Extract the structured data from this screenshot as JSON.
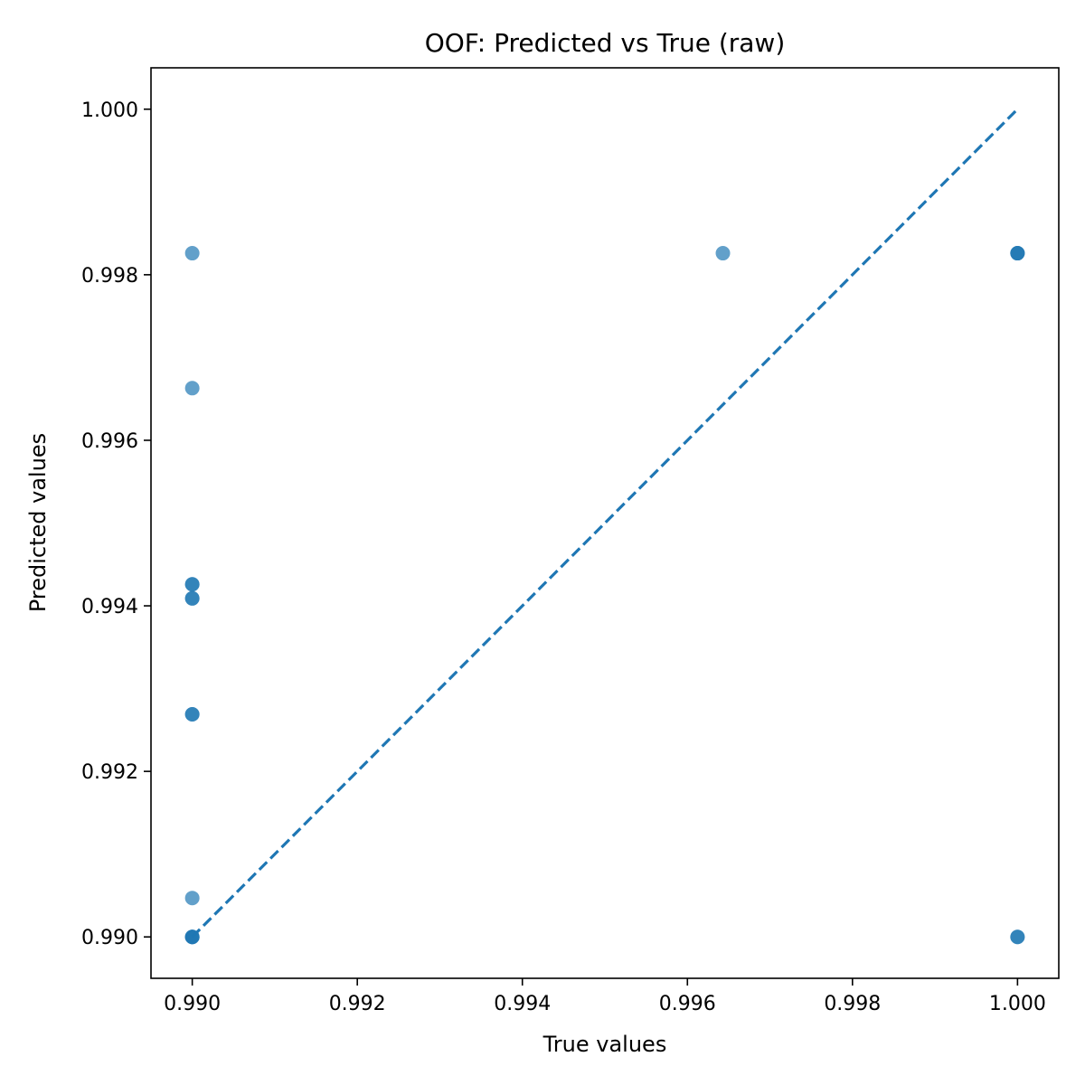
{
  "chart_data": {
    "type": "scatter",
    "title": "OOF: Predicted vs True (raw)",
    "xlabel": "True values",
    "ylabel": "Predicted values",
    "xlim": [
      0.9895,
      1.0005
    ],
    "ylim": [
      0.9895,
      1.0005
    ],
    "xticks": [
      0.99,
      0.992,
      0.994,
      0.996,
      0.998,
      1.0
    ],
    "yticks": [
      0.99,
      0.992,
      0.994,
      0.996,
      0.998,
      1.0
    ],
    "xtick_labels": [
      "0.990",
      "0.992",
      "0.994",
      "0.996",
      "0.998",
      "1.000"
    ],
    "ytick_labels": [
      "0.990",
      "0.992",
      "0.994",
      "0.996",
      "0.998",
      "1.000"
    ],
    "grid": false,
    "colors": {
      "points": "#1f77b4",
      "reference_line": "#1f77b4",
      "axes": "#000000"
    },
    "series": [
      {
        "points": [
          {
            "x": 0.99,
            "y": 0.99826
          },
          {
            "x": 0.99,
            "y": 0.99663
          },
          {
            "x": 0.99,
            "y": 0.99426
          },
          {
            "x": 0.99,
            "y": 0.99426
          },
          {
            "x": 0.99,
            "y": 0.99409
          },
          {
            "x": 0.99,
            "y": 0.99409
          },
          {
            "x": 0.99,
            "y": 0.99269
          },
          {
            "x": 0.99,
            "y": 0.99269
          },
          {
            "x": 0.99,
            "y": 0.99047
          },
          {
            "x": 0.99,
            "y": 0.99
          },
          {
            "x": 0.99,
            "y": 0.99
          },
          {
            "x": 0.99,
            "y": 0.99
          },
          {
            "x": 0.99,
            "y": 0.99
          },
          {
            "x": 0.99643,
            "y": 0.99826
          },
          {
            "x": 1.0,
            "y": 0.99826
          },
          {
            "x": 1.0,
            "y": 0.99826
          },
          {
            "x": 1.0,
            "y": 0.99826
          },
          {
            "x": 1.0,
            "y": 0.99
          },
          {
            "x": 1.0,
            "y": 0.99
          }
        ]
      }
    ],
    "reference_line": {
      "style": "dashed",
      "from": [
        0.99,
        0.99
      ],
      "to": [
        1.0,
        1.0
      ]
    }
  }
}
